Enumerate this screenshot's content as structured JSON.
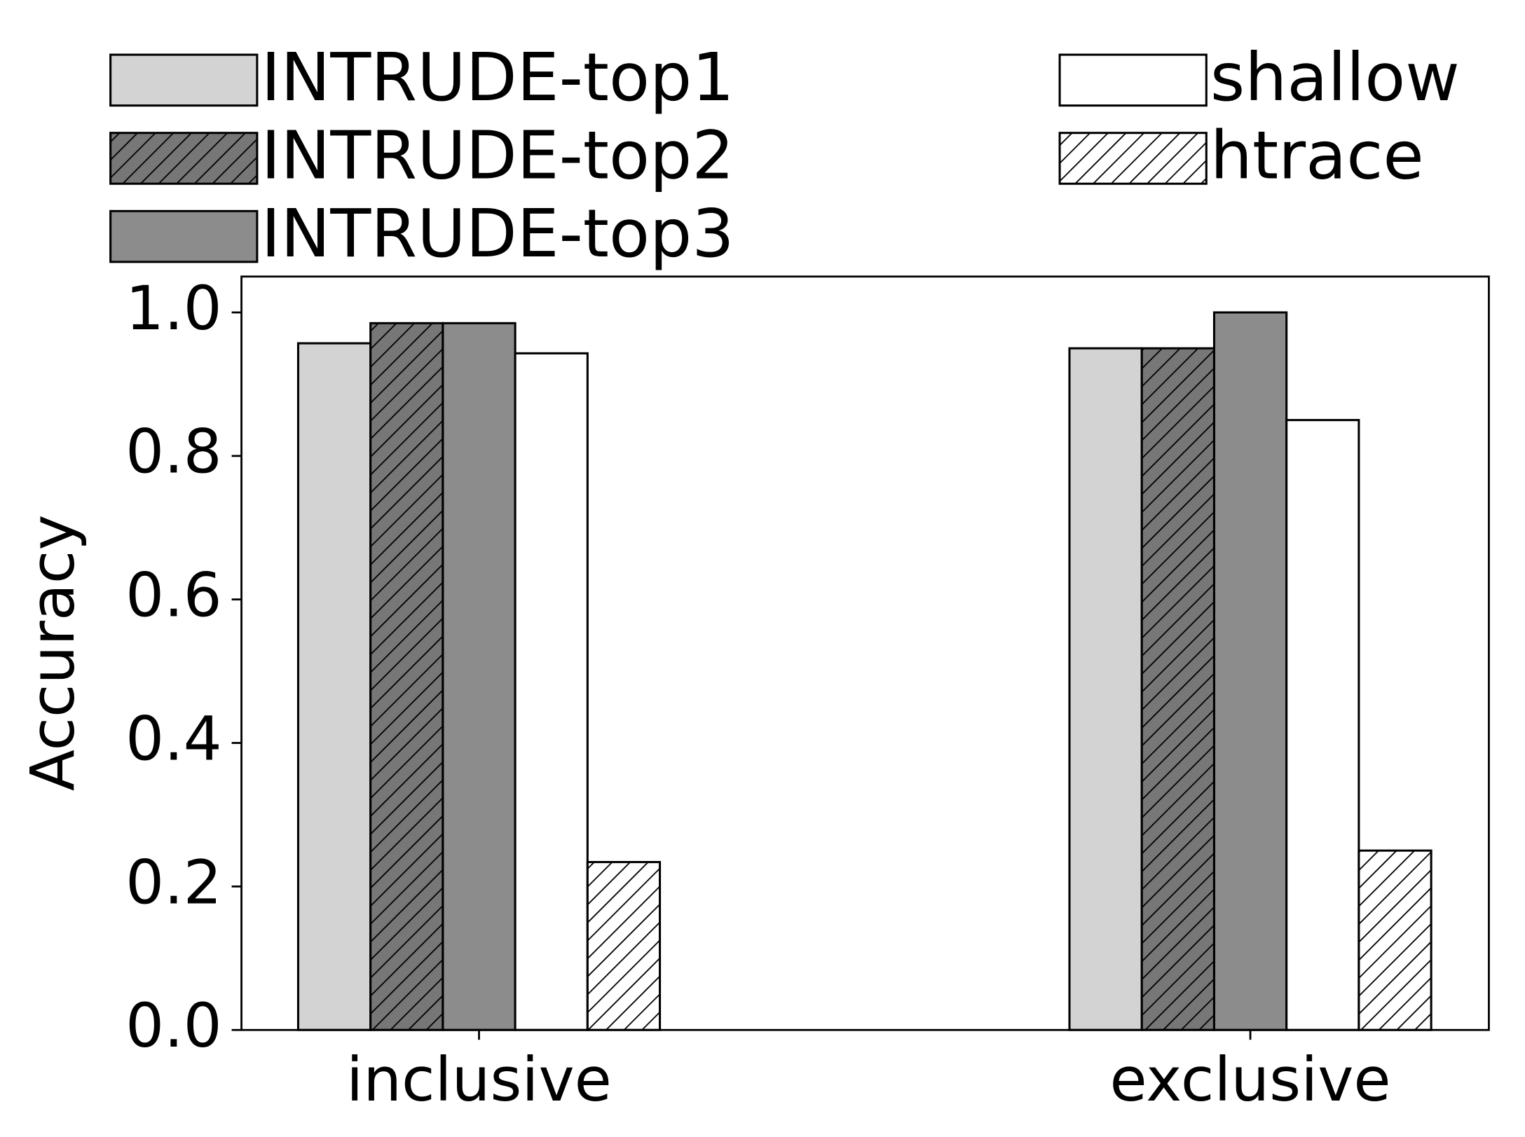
{
  "chart_data": {
    "type": "bar",
    "y_label": "Accuracy",
    "categories": [
      "inclusive",
      "exclusive"
    ],
    "series": [
      {
        "name": "INTRUDE-top1",
        "color": "#d3d3d3",
        "hatch": false,
        "values": [
          0.957,
          0.95
        ]
      },
      {
        "name": "INTRUDE-top2",
        "color": "#777777",
        "hatch": true,
        "values": [
          0.985,
          0.95
        ]
      },
      {
        "name": "INTRUDE-top3",
        "color": "#8c8c8c",
        "hatch": false,
        "values": [
          0.985,
          1.0
        ]
      },
      {
        "name": "shallow",
        "color": "#ffffff",
        "hatch": false,
        "values": [
          0.943,
          0.85
        ]
      },
      {
        "name": "htrace",
        "color": "#ffffff",
        "hatch": true,
        "values": [
          0.234,
          0.25
        ]
      }
    ],
    "ylim": [
      0,
      1.05
    ],
    "yticks": [
      {
        "value": 0,
        "label": "0.0"
      },
      {
        "value": 0.2,
        "label": "0.2"
      },
      {
        "value": 0.4,
        "label": "0.4"
      },
      {
        "value": 0.6,
        "label": "0.6"
      },
      {
        "value": 0.8,
        "label": "0.8"
      },
      {
        "value": 1.0,
        "label": "1.0"
      }
    ],
    "grid": false,
    "legend": "top"
  }
}
